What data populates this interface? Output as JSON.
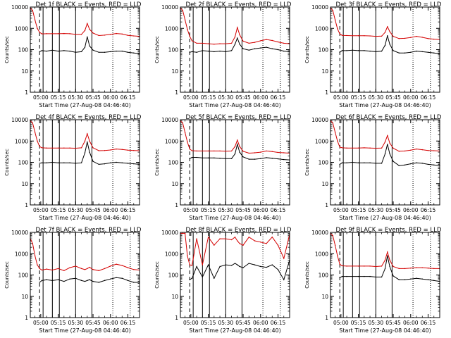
{
  "figure": {
    "xlabel": "Start Time (27-Aug-08 04:46:40)",
    "ylabel": "Counts/sec",
    "y_ticks": [
      "1",
      "10",
      "100",
      "1000",
      "10000"
    ],
    "x_ticks": [
      "05:00",
      "05:15",
      "05:30",
      "05:45",
      "06:00",
      "06:15"
    ],
    "colors": {
      "events": "#000000",
      "lld": "#d40000",
      "axis": "#000000",
      "background": "#ffffff"
    }
  },
  "chart_data": [
    {
      "type": "line",
      "title": "Det 1f BLACK = Events, RED = LLD",
      "xlabel": "Start Time (27-Aug-08 04:46:40)",
      "ylabel": "Counts/sec",
      "xlim": [
        "04:51",
        "06:25"
      ],
      "ylim": [
        1,
        10000
      ],
      "yscale": "log",
      "grid": false,
      "x": [
        "04:51",
        "04:53",
        "04:55",
        "04:57",
        "04:59",
        "05:01",
        "05:05",
        "05:10",
        "05:15",
        "05:20",
        "05:25",
        "05:30",
        "05:35",
        "05:38",
        "05:40",
        "05:42",
        "05:45",
        "05:50",
        "05:55",
        "06:00",
        "06:05",
        "06:10",
        "06:15",
        "06:20",
        "06:25"
      ],
      "series": [
        {
          "name": "BLACK = Events",
          "values": [
            null,
            null,
            null,
            null,
            80,
            90,
            85,
            95,
            85,
            90,
            85,
            75,
            80,
            130,
            400,
            150,
            95,
            75,
            75,
            80,
            85,
            85,
            75,
            70,
            65
          ]
        },
        {
          "name": "RED = LLD",
          "values": [
            9000,
            7000,
            2500,
            1000,
            650,
            550,
            560,
            560,
            560,
            570,
            560,
            520,
            520,
            800,
            1700,
            900,
            600,
            460,
            480,
            520,
            570,
            540,
            470,
            440,
            420
          ]
        }
      ],
      "dashed_vlines": [
        "04:59"
      ],
      "solid_vlines": [
        "05:02",
        "05:10",
        "05:16",
        "05:30",
        "05:44"
      ],
      "dotted_vlines": [
        "06:02",
        "06:17"
      ]
    },
    {
      "type": "line",
      "title": "Det 2f BLACK = Events, RED = LLD",
      "xlabel": "Start Time (27-Aug-08 04:46:40)",
      "ylabel": "Counts/sec",
      "xlim": [
        "04:51",
        "06:25"
      ],
      "ylim": [
        1,
        10000
      ],
      "yscale": "log",
      "grid": false,
      "x": [
        "04:51",
        "04:53",
        "04:55",
        "04:57",
        "04:59",
        "05:01",
        "05:05",
        "05:10",
        "05:15",
        "05:20",
        "05:25",
        "05:30",
        "05:35",
        "05:38",
        "05:40",
        "05:42",
        "05:45",
        "05:50",
        "05:55",
        "06:00",
        "06:05",
        "06:10",
        "06:15",
        "06:20",
        "06:25"
      ],
      "series": [
        {
          "name": "BLACK = Events",
          "values": [
            null,
            null,
            null,
            null,
            75,
            80,
            75,
            90,
            85,
            80,
            85,
            80,
            90,
            180,
            350,
            180,
            110,
            95,
            110,
            120,
            130,
            110,
            100,
            85,
            80
          ]
        },
        {
          "name": "RED = LLD",
          "values": [
            9000,
            7000,
            2500,
            900,
            420,
            260,
            200,
            200,
            190,
            180,
            190,
            190,
            200,
            400,
            1100,
            500,
            250,
            200,
            220,
            260,
            300,
            270,
            230,
            200,
            190
          ]
        }
      ],
      "dashed_vlines": [
        "04:59"
      ],
      "solid_vlines": [
        "05:02",
        "05:10",
        "05:16",
        "05:30",
        "05:44"
      ],
      "dotted_vlines": [
        "06:02",
        "06:17"
      ]
    },
    {
      "type": "line",
      "title": "Det 3f BLACK = Events, RED = LLD",
      "xlabel": "Start Time (27-Aug-08 04:46:40)",
      "ylabel": "Counts/sec",
      "xlim": [
        "04:51",
        "06:25"
      ],
      "ylim": [
        1,
        10000
      ],
      "yscale": "log",
      "grid": false,
      "x": [
        "04:51",
        "04:53",
        "04:55",
        "04:57",
        "04:59",
        "05:01",
        "05:05",
        "05:10",
        "05:15",
        "05:20",
        "05:25",
        "05:30",
        "05:35",
        "05:38",
        "05:40",
        "05:42",
        "05:45",
        "05:50",
        "05:55",
        "06:00",
        "06:05",
        "06:10",
        "06:15",
        "06:20",
        "06:25"
      ],
      "series": [
        {
          "name": "BLACK = Events",
          "values": [
            null,
            null,
            null,
            null,
            75,
            90,
            90,
            95,
            90,
            90,
            85,
            80,
            85,
            160,
            450,
            180,
            90,
            70,
            70,
            75,
            85,
            80,
            75,
            70,
            65
          ]
        },
        {
          "name": "RED = LLD",
          "values": [
            9000,
            7000,
            2500,
            950,
            550,
            470,
            460,
            450,
            450,
            450,
            440,
            420,
            430,
            650,
            1200,
            700,
            420,
            330,
            340,
            370,
            420,
            380,
            330,
            310,
            300
          ]
        }
      ],
      "dashed_vlines": [
        "04:59"
      ],
      "solid_vlines": [
        "05:02",
        "05:10",
        "05:16",
        "05:30",
        "05:44"
      ],
      "dotted_vlines": [
        "06:02",
        "06:17"
      ]
    },
    {
      "type": "line",
      "title": "Det 4f BLACK = Events, RED = LLD",
      "xlabel": "Start Time (27-Aug-08 04:46:40)",
      "ylabel": "Counts/sec",
      "xlim": [
        "04:51",
        "06:25"
      ],
      "ylim": [
        1,
        10000
      ],
      "yscale": "log",
      "grid": false,
      "x": [
        "04:51",
        "04:53",
        "04:55",
        "04:57",
        "04:59",
        "05:01",
        "05:05",
        "05:10",
        "05:15",
        "05:20",
        "05:25",
        "05:30",
        "05:35",
        "05:38",
        "05:40",
        "05:42",
        "05:45",
        "05:50",
        "05:55",
        "06:00",
        "06:05",
        "06:10",
        "06:15",
        "06:20",
        "06:25"
      ],
      "series": [
        {
          "name": "BLACK = Events",
          "values": [
            null,
            null,
            null,
            null,
            90,
            95,
            95,
            100,
            95,
            95,
            95,
            90,
            95,
            280,
            900,
            300,
            110,
            80,
            85,
            95,
            100,
            95,
            90,
            85,
            80
          ]
        },
        {
          "name": "RED = LLD",
          "values": [
            9000,
            7000,
            2600,
            1000,
            550,
            480,
            470,
            470,
            470,
            470,
            470,
            460,
            480,
            1000,
            2200,
            1000,
            480,
            350,
            360,
            380,
            420,
            400,
            370,
            360,
            350
          ]
        }
      ],
      "dashed_vlines": [
        "04:59"
      ],
      "solid_vlines": [
        "05:02",
        "05:10",
        "05:16",
        "05:30",
        "05:44"
      ],
      "dotted_vlines": [
        "06:02",
        "06:17"
      ]
    },
    {
      "type": "line",
      "title": "Det 5f BLACK = Events, RED = LLD",
      "xlabel": "Start Time (27-Aug-08 04:46:40)",
      "ylabel": "Counts/sec",
      "xlim": [
        "04:51",
        "06:25"
      ],
      "ylim": [
        1,
        10000
      ],
      "yscale": "log",
      "grid": false,
      "x": [
        "04:51",
        "04:53",
        "04:55",
        "04:57",
        "04:59",
        "05:01",
        "05:05",
        "05:10",
        "05:15",
        "05:20",
        "05:25",
        "05:30",
        "05:35",
        "05:38",
        "05:40",
        "05:42",
        "05:45",
        "05:50",
        "05:55",
        "06:00",
        "06:05",
        "06:10",
        "06:15",
        "06:20",
        "06:25"
      ],
      "series": [
        {
          "name": "BLACK = Events",
          "values": [
            null,
            null,
            null,
            null,
            150,
            170,
            170,
            160,
            160,
            160,
            155,
            150,
            150,
            250,
            700,
            300,
            180,
            140,
            140,
            150,
            165,
            155,
            145,
            135,
            130
          ]
        },
        {
          "name": "RED = LLD",
          "values": [
            9000,
            7000,
            2500,
            900,
            420,
            350,
            340,
            340,
            340,
            340,
            340,
            330,
            340,
            550,
            1100,
            550,
            330,
            270,
            280,
            300,
            340,
            320,
            290,
            280,
            270
          ]
        }
      ],
      "dashed_vlines": [
        "04:59"
      ],
      "solid_vlines": [
        "05:02",
        "05:10",
        "05:16",
        "05:30",
        "05:44"
      ],
      "dotted_vlines": [
        "06:02",
        "06:17"
      ]
    },
    {
      "type": "line",
      "title": "Det 6f BLACK = Events, RED = LLD",
      "xlabel": "Start Time (27-Aug-08 04:46:40)",
      "ylabel": "Counts/sec",
      "xlim": [
        "04:51",
        "06:25"
      ],
      "ylim": [
        1,
        10000
      ],
      "yscale": "log",
      "grid": false,
      "x": [
        "04:51",
        "04:53",
        "04:55",
        "04:57",
        "04:59",
        "05:01",
        "05:05",
        "05:10",
        "05:15",
        "05:20",
        "05:25",
        "05:30",
        "05:35",
        "05:38",
        "05:40",
        "05:42",
        "05:45",
        "05:50",
        "05:55",
        "06:00",
        "06:05",
        "06:10",
        "06:15",
        "06:20",
        "06:25"
      ],
      "series": [
        {
          "name": "BLACK = Events",
          "values": [
            null,
            null,
            null,
            null,
            80,
            95,
            95,
            100,
            95,
            95,
            95,
            90,
            90,
            250,
            700,
            250,
            110,
            70,
            75,
            85,
            95,
            90,
            80,
            75,
            70
          ]
        },
        {
          "name": "RED = LLD",
          "values": [
            9000,
            7000,
            2600,
            1000,
            520,
            480,
            470,
            470,
            470,
            480,
            470,
            460,
            470,
            900,
            1800,
            800,
            460,
            330,
            340,
            370,
            420,
            390,
            360,
            350,
            340
          ]
        }
      ],
      "dashed_vlines": [
        "04:59"
      ],
      "solid_vlines": [
        "05:02",
        "05:10",
        "05:16",
        "05:30",
        "05:44"
      ],
      "dotted_vlines": [
        "06:02",
        "06:17"
      ]
    },
    {
      "type": "line",
      "title": "Det 7f BLACK = Events, RED = LLD",
      "xlabel": "Start Time (27-Aug-08 04:46:40)",
      "ylabel": "Counts/sec",
      "xlim": [
        "04:51",
        "06:25"
      ],
      "ylim": [
        1,
        10000
      ],
      "yscale": "log",
      "grid": false,
      "x": [
        "04:51",
        "04:53",
        "04:55",
        "04:57",
        "04:59",
        "05:01",
        "05:05",
        "05:10",
        "05:15",
        "05:20",
        "05:25",
        "05:30",
        "05:35",
        "05:38",
        "05:40",
        "05:42",
        "05:45",
        "05:50",
        "05:55",
        "06:00",
        "06:05",
        "06:10",
        "06:15",
        "06:20",
        "06:25"
      ],
      "series": [
        {
          "name": "BLACK = Events",
          "values": [
            null,
            null,
            null,
            null,
            45,
            55,
            60,
            55,
            60,
            50,
            65,
            70,
            55,
            50,
            55,
            60,
            50,
            45,
            55,
            65,
            75,
            70,
            55,
            45,
            45
          ]
        },
        {
          "name": "RED = LLD",
          "values": [
            5000,
            3000,
            800,
            300,
            200,
            170,
            190,
            170,
            200,
            160,
            220,
            260,
            200,
            180,
            200,
            230,
            180,
            160,
            200,
            260,
            320,
            280,
            220,
            180,
            170
          ]
        }
      ],
      "dashed_vlines": [
        "04:59"
      ],
      "solid_vlines": [
        "05:02",
        "05:10",
        "05:16",
        "05:30",
        "05:44"
      ],
      "dotted_vlines": [
        "06:02",
        "06:17"
      ]
    },
    {
      "type": "line",
      "title": "Det 8f BLACK = Events, RED = LLD",
      "xlabel": "Start Time (27-Aug-08 04:46:40)",
      "ylabel": "Counts/sec",
      "xlim": [
        "04:51",
        "06:25"
      ],
      "ylim": [
        1,
        10000
      ],
      "yscale": "log",
      "grid": false,
      "x": [
        "04:51",
        "04:53",
        "04:55",
        "04:57",
        "04:59",
        "05:01",
        "05:05",
        "05:10",
        "05:15",
        "05:20",
        "05:25",
        "05:30",
        "05:35",
        "05:38",
        "05:40",
        "05:42",
        "05:45",
        "05:50",
        "05:55",
        "06:00",
        "06:05",
        "06:10",
        "06:15",
        "06:20",
        "06:25"
      ],
      "series": [
        {
          "name": "BLACK = Events",
          "values": [
            null,
            null,
            null,
            null,
            60,
            70,
            250,
            80,
            300,
            70,
            250,
            300,
            280,
            350,
            300,
            250,
            220,
            350,
            300,
            250,
            230,
            300,
            180,
            60,
            500
          ]
        },
        {
          "name": "RED = LLD",
          "values": [
            9000,
            9000,
            9000,
            800,
            300,
            280,
            5000,
            300,
            6000,
            2500,
            5000,
            5000,
            4500,
            6000,
            4000,
            3000,
            2500,
            6000,
            4000,
            3500,
            3000,
            6000,
            2500,
            600,
            8000
          ]
        }
      ],
      "dashed_vlines": [
        "04:59"
      ],
      "solid_vlines": [
        "05:02",
        "05:10",
        "05:16",
        "05:30",
        "05:44"
      ],
      "dotted_vlines": [
        "06:02",
        "06:17"
      ]
    },
    {
      "type": "line",
      "title": "Det 9f BLACK = Events, RED = LLD",
      "xlabel": "Start Time (27-Aug-08 04:46:40)",
      "ylabel": "Counts/sec",
      "xlim": [
        "04:51",
        "06:25"
      ],
      "ylim": [
        1,
        10000
      ],
      "yscale": "log",
      "grid": false,
      "x": [
        "04:51",
        "04:53",
        "04:55",
        "04:57",
        "04:59",
        "05:01",
        "05:05",
        "05:10",
        "05:15",
        "05:20",
        "05:25",
        "05:30",
        "05:35",
        "05:38",
        "05:40",
        "05:42",
        "05:45",
        "05:50",
        "05:55",
        "06:00",
        "06:05",
        "06:10",
        "06:15",
        "06:20",
        "06:25"
      ],
      "series": [
        {
          "name": "BLACK = Events",
          "values": [
            null,
            null,
            null,
            null,
            75,
            85,
            85,
            85,
            85,
            85,
            85,
            80,
            80,
            200,
            800,
            250,
            90,
            60,
            60,
            65,
            70,
            65,
            60,
            55,
            50
          ]
        },
        {
          "name": "RED = LLD",
          "values": [
            9000,
            7000,
            2500,
            800,
            320,
            270,
            260,
            260,
            260,
            260,
            260,
            250,
            260,
            500,
            1200,
            500,
            250,
            200,
            200,
            210,
            220,
            220,
            210,
            200,
            200
          ]
        }
      ],
      "dashed_vlines": [
        "04:59"
      ],
      "solid_vlines": [
        "05:02",
        "05:10",
        "05:16",
        "05:30",
        "05:44"
      ],
      "dotted_vlines": [
        "06:02",
        "06:17"
      ]
    }
  ]
}
